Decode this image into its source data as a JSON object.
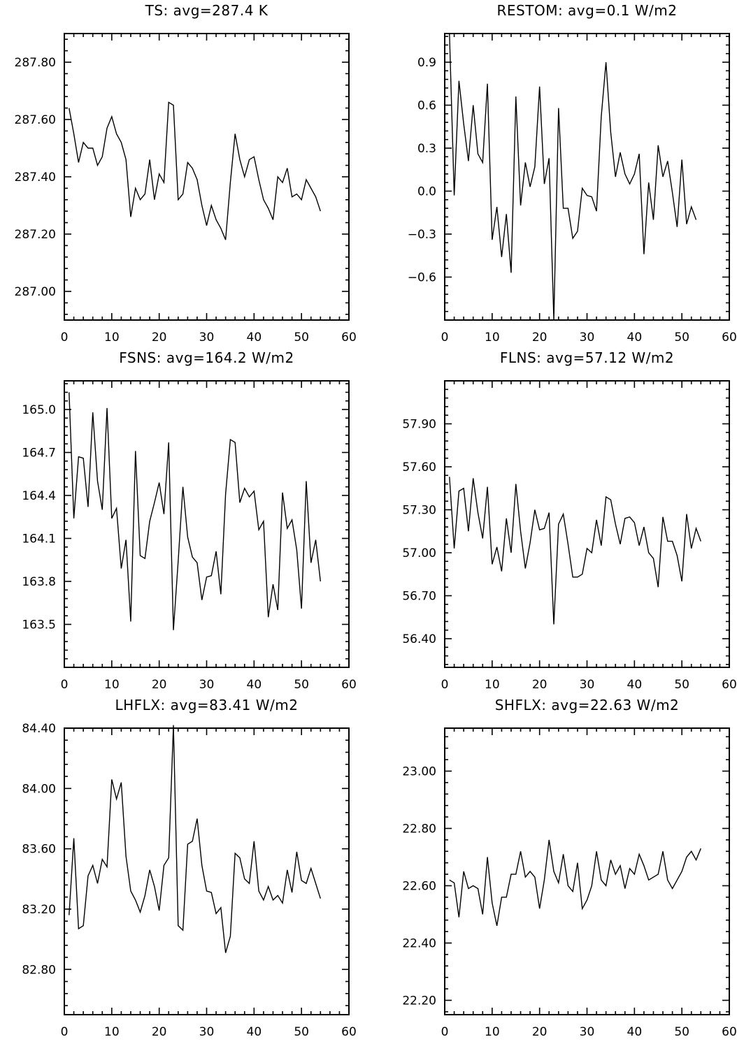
{
  "chart_data": [
    {
      "type": "line",
      "title": "TS: avg=287.4 K",
      "xlim": [
        0,
        60
      ],
      "ylim": [
        286.9,
        287.9
      ],
      "xticks": [
        0,
        10,
        20,
        30,
        40,
        50,
        60
      ],
      "xtick_labels": [
        "0",
        "10",
        "20",
        "30",
        "40",
        "50",
        "60"
      ],
      "yticks": [
        287.0,
        287.2,
        287.4,
        287.6,
        287.8
      ],
      "ytick_labels": [
        "287.00",
        "287.20",
        "287.40",
        "287.60",
        "287.80"
      ],
      "y_minor_step": 0.04,
      "series": [
        {
          "values": [
            287.64,
            287.55,
            287.45,
            287.52,
            287.5,
            287.5,
            287.44,
            287.47,
            287.57,
            287.61,
            287.55,
            287.52,
            287.46,
            287.26,
            287.36,
            287.32,
            287.34,
            287.46,
            287.32,
            287.41,
            287.38,
            287.66,
            287.65,
            287.32,
            287.34,
            287.45,
            287.43,
            287.39,
            287.3,
            287.23,
            287.3,
            287.25,
            287.22,
            287.18,
            287.38,
            287.55,
            287.46,
            287.4,
            287.46,
            287.47,
            287.39,
            287.32,
            287.29,
            287.25,
            287.4,
            287.38,
            287.43,
            287.33,
            287.34,
            287.32,
            287.39,
            287.36,
            287.33,
            287.28
          ]
        }
      ]
    },
    {
      "type": "line",
      "title": "RESTOM: avg=0.1 W/m2",
      "xlim": [
        0,
        60
      ],
      "ylim": [
        -0.9,
        1.1
      ],
      "xticks": [
        0,
        10,
        20,
        30,
        40,
        50,
        60
      ],
      "xtick_labels": [
        "0",
        "10",
        "20",
        "30",
        "40",
        "50",
        "60"
      ],
      "yticks": [
        -0.6,
        -0.3,
        0.0,
        0.3,
        0.6,
        0.9
      ],
      "ytick_labels": [
        "−0.6",
        "−0.3",
        "0.0",
        "0.3",
        "0.6",
        "0.9"
      ],
      "y_minor_step": 0.06,
      "series": [
        {
          "values": [
            1.1,
            -0.03,
            0.77,
            0.47,
            0.21,
            0.6,
            0.26,
            0.2,
            0.75,
            -0.34,
            -0.11,
            -0.46,
            -0.16,
            -0.57,
            0.66,
            -0.1,
            0.2,
            0.03,
            0.17,
            0.73,
            0.05,
            0.23,
            -0.9,
            0.58,
            -0.12,
            -0.12,
            -0.33,
            -0.28,
            0.02,
            -0.03,
            -0.04,
            -0.14,
            0.52,
            0.9,
            0.41,
            0.1,
            0.27,
            0.12,
            0.05,
            0.12,
            0.26,
            -0.44,
            0.06,
            -0.2,
            0.32,
            0.1,
            0.21,
            -0.01,
            -0.25,
            0.22,
            -0.23,
            -0.11,
            -0.2
          ]
        }
      ]
    },
    {
      "type": "line",
      "title": "FSNS: avg=164.2 W/m2",
      "xlim": [
        0,
        60
      ],
      "ylim": [
        163.2,
        165.2
      ],
      "xticks": [
        0,
        10,
        20,
        30,
        40,
        50,
        60
      ],
      "xtick_labels": [
        "0",
        "10",
        "20",
        "30",
        "40",
        "50",
        "60"
      ],
      "yticks": [
        163.5,
        163.8,
        164.1,
        164.4,
        164.7,
        165.0
      ],
      "ytick_labels": [
        "163.5",
        "163.8",
        "164.1",
        "164.4",
        "164.7",
        "165.0"
      ],
      "y_minor_step": 0.06,
      "series": [
        {
          "values": [
            165.12,
            164.24,
            164.67,
            164.66,
            164.32,
            164.98,
            164.5,
            164.3,
            165.01,
            164.24,
            164.31,
            163.89,
            164.09,
            163.52,
            164.71,
            163.98,
            163.96,
            164.22,
            164.35,
            164.49,
            164.27,
            164.77,
            163.46,
            163.94,
            164.46,
            164.11,
            163.97,
            163.93,
            163.67,
            163.83,
            163.84,
            164.01,
            163.71,
            164.41,
            164.79,
            164.77,
            164.35,
            164.45,
            164.39,
            164.43,
            164.16,
            164.22,
            163.55,
            163.78,
            163.6,
            164.42,
            164.17,
            164.23,
            164.02,
            163.61,
            164.5,
            163.93,
            164.09,
            163.8
          ]
        }
      ]
    },
    {
      "type": "line",
      "title": "FLNS: avg=57.12 W/m2",
      "xlim": [
        0,
        60
      ],
      "ylim": [
        56.2,
        58.2
      ],
      "xticks": [
        0,
        10,
        20,
        30,
        40,
        50,
        60
      ],
      "xtick_labels": [
        "0",
        "10",
        "20",
        "30",
        "40",
        "50",
        "60"
      ],
      "yticks": [
        56.4,
        56.7,
        57.0,
        57.3,
        57.6,
        57.9
      ],
      "ytick_labels": [
        "56.40",
        "56.70",
        "57.00",
        "57.30",
        "57.60",
        "57.90"
      ],
      "y_minor_step": 0.06,
      "series": [
        {
          "values": [
            57.53,
            57.03,
            57.43,
            57.45,
            57.15,
            57.52,
            57.28,
            57.1,
            57.46,
            56.92,
            57.04,
            56.87,
            57.24,
            57.0,
            57.48,
            57.15,
            56.89,
            57.07,
            57.3,
            57.16,
            57.17,
            57.28,
            56.5,
            57.2,
            57.27,
            57.06,
            56.83,
            56.83,
            56.85,
            57.03,
            57.0,
            57.23,
            57.05,
            57.39,
            57.37,
            57.2,
            57.06,
            57.24,
            57.25,
            57.21,
            57.05,
            57.18,
            57.0,
            56.96,
            56.76,
            57.25,
            57.08,
            57.08,
            56.98,
            56.8,
            57.27,
            57.03,
            57.17,
            57.08
          ]
        }
      ]
    },
    {
      "type": "line",
      "title": "LHFLX: avg=83.41 W/m2",
      "xlim": [
        0,
        60
      ],
      "ylim": [
        82.5,
        84.4
      ],
      "xticks": [
        0,
        10,
        20,
        30,
        40,
        50,
        60
      ],
      "xtick_labels": [
        "0",
        "10",
        "20",
        "30",
        "40",
        "50",
        "60"
      ],
      "yticks": [
        82.8,
        83.2,
        83.6,
        84.0,
        84.4
      ],
      "ytick_labels": [
        "82.80",
        "83.20",
        "83.60",
        "84.00",
        "84.40"
      ],
      "y_minor_step": 0.08,
      "series": [
        {
          "values": [
            83.16,
            83.67,
            83.07,
            83.09,
            83.42,
            83.49,
            83.37,
            83.53,
            83.48,
            84.06,
            83.93,
            84.04,
            83.55,
            83.32,
            83.26,
            83.18,
            83.29,
            83.46,
            83.35,
            83.19,
            83.49,
            83.54,
            84.42,
            83.09,
            83.06,
            83.63,
            83.65,
            83.8,
            83.49,
            83.32,
            83.31,
            83.17,
            83.21,
            82.91,
            83.02,
            83.57,
            83.54,
            83.4,
            83.37,
            83.65,
            83.32,
            83.26,
            83.35,
            83.26,
            83.29,
            83.24,
            83.46,
            83.31,
            83.58,
            83.39,
            83.37,
            83.47,
            83.37,
            83.27
          ]
        }
      ]
    },
    {
      "type": "line",
      "title": "SHFLX: avg=22.63 W/m2",
      "xlim": [
        0,
        60
      ],
      "ylim": [
        22.15,
        23.15
      ],
      "xticks": [
        0,
        10,
        20,
        30,
        40,
        50,
        60
      ],
      "xtick_labels": [
        "0",
        "10",
        "20",
        "30",
        "40",
        "50",
        "60"
      ],
      "yticks": [
        22.2,
        22.4,
        22.6,
        22.8,
        23.0
      ],
      "ytick_labels": [
        "22.20",
        "22.40",
        "22.60",
        "22.80",
        "23.00"
      ],
      "y_minor_step": 0.04,
      "series": [
        {
          "values": [
            22.62,
            22.61,
            22.49,
            22.65,
            22.59,
            22.6,
            22.59,
            22.5,
            22.7,
            22.54,
            22.46,
            22.56,
            22.56,
            22.64,
            22.64,
            22.72,
            22.63,
            22.65,
            22.63,
            22.52,
            22.62,
            22.76,
            22.65,
            22.61,
            22.71,
            22.6,
            22.58,
            22.68,
            22.52,
            22.55,
            22.6,
            22.72,
            22.62,
            22.6,
            22.69,
            22.64,
            22.67,
            22.59,
            22.66,
            22.64,
            22.71,
            22.67,
            22.62,
            22.63,
            22.64,
            22.72,
            22.62,
            22.59,
            22.62,
            22.65,
            22.7,
            22.72,
            22.69,
            22.73
          ]
        }
      ]
    }
  ]
}
